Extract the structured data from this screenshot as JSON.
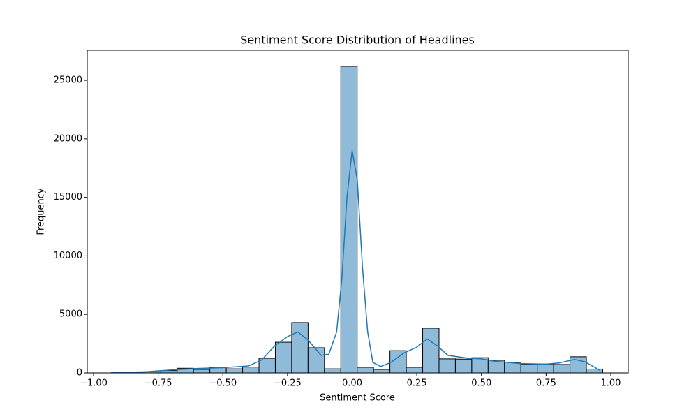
{
  "chart_data": {
    "type": "histogram",
    "title": "Sentiment Score Distribution of Headlines",
    "x_label": "Sentiment Score",
    "y_label": "Frequency",
    "bins": [
      -0.93,
      -0.8667,
      -0.8034,
      -0.7401,
      -0.6768,
      -0.6135,
      -0.5502,
      -0.4869,
      -0.4236,
      -0.3603,
      -0.297,
      -0.2337,
      -0.1704,
      -0.1071,
      -0.0438,
      0.0195,
      0.0828,
      0.1461,
      0.2094,
      0.2727,
      0.336,
      0.3993,
      0.4626,
      0.5259,
      0.5892,
      0.6525,
      0.7158,
      0.7791,
      0.8424,
      0.9057,
      0.969
    ],
    "counts": [
      50,
      80,
      100,
      200,
      400,
      300,
      450,
      350,
      500,
      1250,
      2620,
      4300,
      2150,
      350,
      26200,
      480,
      300,
      1900,
      480,
      3820,
      1200,
      1180,
      1300,
      1080,
      900,
      750,
      760,
      720,
      1380,
      330
    ],
    "color": "#8fbbd9",
    "edge_color": "#000000",
    "kde": {
      "color": "#1f77b4",
      "x": [
        -0.93,
        -0.8,
        -0.7,
        -0.6,
        -0.5,
        -0.4,
        -0.35,
        -0.3,
        -0.25,
        -0.21,
        -0.17,
        -0.12,
        -0.09,
        -0.06,
        -0.04,
        -0.02,
        0,
        0.02,
        0.04,
        0.06,
        0.08,
        0.11,
        0.15,
        0.2,
        0.25,
        0.29,
        0.33,
        0.37,
        0.45,
        0.5,
        0.55,
        0.65,
        0.75,
        0.8,
        0.86,
        0.9,
        0.96
      ],
      "values": [
        30,
        100,
        250,
        380,
        450,
        600,
        1100,
        2300,
        3100,
        3500,
        2800,
        1500,
        1600,
        3500,
        8000,
        15000,
        19000,
        16500,
        9000,
        3500,
        900,
        550,
        900,
        1700,
        2200,
        2900,
        2300,
        1500,
        1250,
        1200,
        1000,
        800,
        750,
        850,
        1150,
        950,
        200
      ]
    },
    "xlim": [
      -1.0243,
      1.0675
    ],
    "ylim": [
      0,
      27570
    ],
    "xticks": [
      {
        "value": -1.0,
        "label": "−1.00"
      },
      {
        "value": -0.75,
        "label": "−0.75"
      },
      {
        "value": -0.5,
        "label": "−0.50"
      },
      {
        "value": -0.25,
        "label": "−0.25"
      },
      {
        "value": 0,
        "label": "0.00"
      },
      {
        "value": 0.25,
        "label": "0.25"
      },
      {
        "value": 0.5,
        "label": "0.50"
      },
      {
        "value": 0.75,
        "label": "0.75"
      },
      {
        "value": 1.0,
        "label": "1.00"
      }
    ],
    "yticks": [
      0,
      5000,
      10000,
      15000,
      20000,
      25000
    ]
  }
}
